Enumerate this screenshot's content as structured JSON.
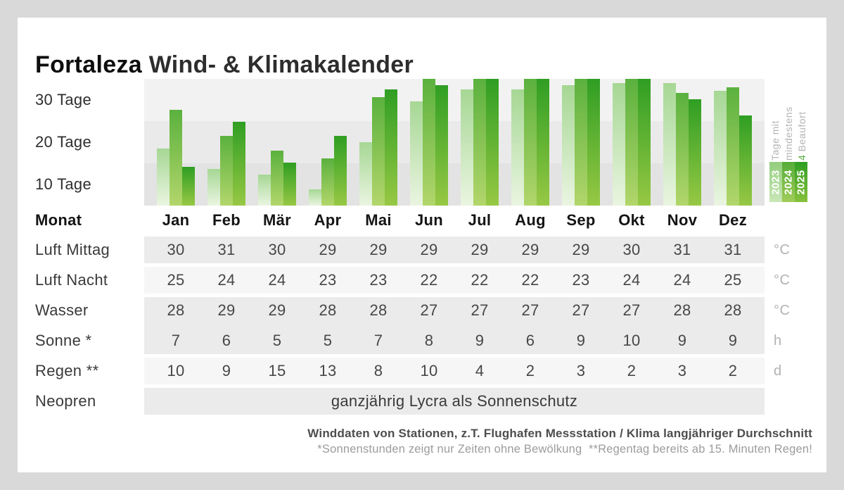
{
  "title": {
    "brand": "Fortaleza",
    "rest": " Wind- & Klimakalender"
  },
  "chart_data": {
    "type": "bar",
    "title": "Tage mit mindestens 4 Beaufort",
    "categories": [
      "Jan",
      "Feb",
      "Mär",
      "Apr",
      "Mai",
      "Jun",
      "Jul",
      "Aug",
      "Sep",
      "Okt",
      "Nov",
      "Dez"
    ],
    "series": [
      {
        "name": "2023",
        "values": [
          14,
          9,
          7.5,
          4,
          15.5,
          25.5,
          28.5,
          28.5,
          29.5,
          30,
          30,
          28
        ]
      },
      {
        "name": "2024",
        "values": [
          23.5,
          17,
          13.5,
          11.5,
          26.5,
          31,
          31,
          31,
          31,
          31,
          27.5,
          29
        ]
      },
      {
        "name": "2025",
        "values": [
          9.5,
          20.5,
          10.5,
          17,
          28.5,
          29.5,
          31,
          31,
          31,
          31,
          26,
          22
        ]
      }
    ],
    "ylabel": "Tage",
    "xlabel": "Monat",
    "y_ticks": [
      "30 Tage",
      "20 Tage",
      "10 Tage"
    ],
    "y_gridlines": [
      30,
      20,
      10
    ],
    "ylim": [
      0,
      31
    ],
    "grid": "horizontal-bands",
    "legend_position": "right"
  },
  "legend": {
    "title_lines": [
      "Tage mit",
      "mindestens"
    ],
    "title_line3_accent": "4",
    "title_line3_rest": " Beaufort",
    "years": [
      "2023",
      "2024",
      "2025"
    ]
  },
  "table": {
    "month_label": "Monat",
    "months": [
      "Jan",
      "Feb",
      "Mär",
      "Apr",
      "Mai",
      "Jun",
      "Jul",
      "Aug",
      "Sep",
      "Okt",
      "Nov",
      "Dez"
    ],
    "rows": [
      {
        "label": "Luft Mittag",
        "values": [
          30,
          31,
          30,
          29,
          29,
          29,
          29,
          29,
          29,
          30,
          31,
          31
        ],
        "unit": "°C"
      },
      {
        "label": "Luft Nacht",
        "values": [
          25,
          24,
          24,
          23,
          23,
          22,
          22,
          22,
          23,
          24,
          24,
          25
        ],
        "unit": "°C"
      },
      {
        "label": "Wasser",
        "values": [
          28,
          29,
          29,
          28,
          28,
          27,
          27,
          27,
          27,
          27,
          28,
          28
        ],
        "unit": "°C"
      },
      {
        "label": "Sonne *",
        "values": [
          7,
          6,
          5,
          5,
          7,
          8,
          9,
          6,
          9,
          10,
          9,
          9
        ],
        "unit": "h"
      },
      {
        "label": "Regen **",
        "values": [
          10,
          9,
          15,
          13,
          8,
          10,
          4,
          2,
          3,
          2,
          3,
          2
        ],
        "unit": "d"
      },
      {
        "label": "Neopren",
        "span_text": "ganzjährig Lycra als Sonnenschutz",
        "unit": ""
      }
    ]
  },
  "footer": {
    "line1": "Winddaten von Stationen, z.T. Flughafen Messstation / Klima langjähriger Durchschnitt",
    "line2": "*Sonnenstunden zeigt nur Zeiten ohne Bewölkung  **Regentag bereits ab 15. Minuten Regen!"
  },
  "colors": {
    "accent_green": "#55ab39",
    "series": [
      {
        "name": "2023",
        "top": "#a6d794",
        "bottom": "#eaf5e1"
      },
      {
        "name": "2024",
        "top": "#5bb13e",
        "bottom": "#b2d66b"
      },
      {
        "name": "2025",
        "top": "#2f9e23",
        "bottom": "#97c844"
      }
    ],
    "chips": [
      {
        "top": "#93ce7d",
        "bottom": "#c9e7b6"
      },
      {
        "top": "#55ac39",
        "bottom": "#a0cc59"
      },
      {
        "top": "#2f9e23",
        "bottom": "#86c13c"
      }
    ]
  }
}
